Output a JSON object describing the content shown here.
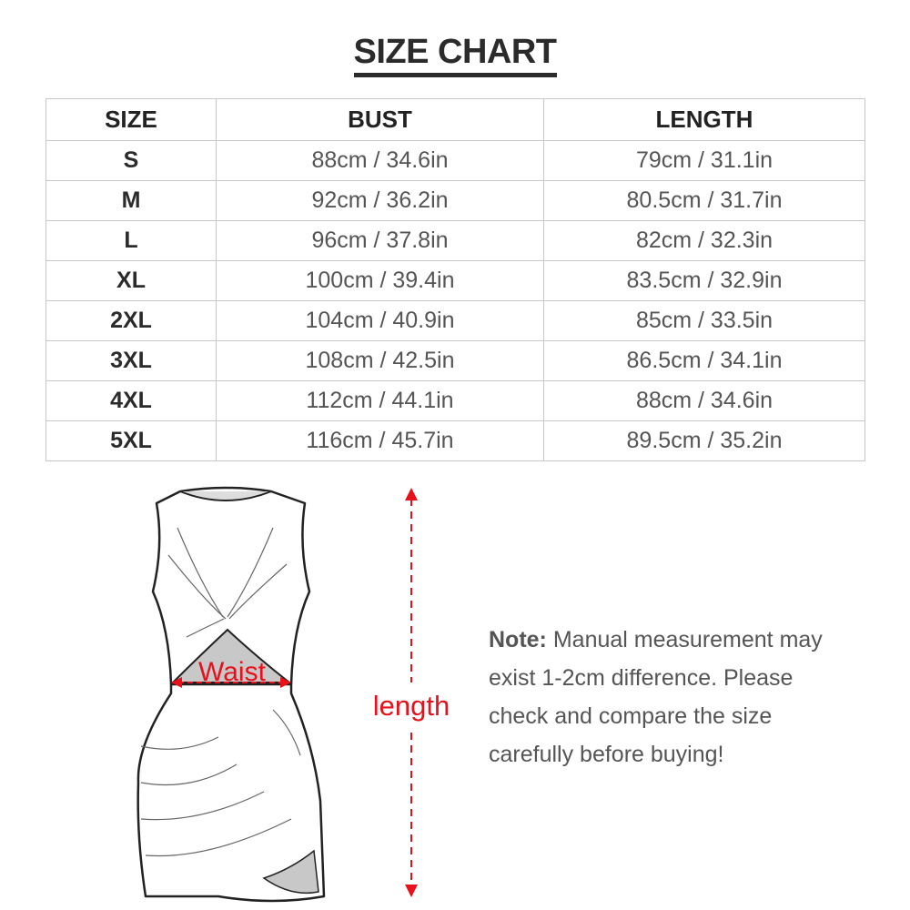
{
  "title": "SIZE CHART",
  "table": {
    "headers": [
      "SIZE",
      "BUST",
      "LENGTH"
    ],
    "rows": [
      [
        "S",
        "88cm / 34.6in",
        "79cm / 31.1in"
      ],
      [
        "M",
        "92cm / 36.2in",
        "80.5cm / 31.7in"
      ],
      [
        "L",
        "96cm / 37.8in",
        "82cm / 32.3in"
      ],
      [
        "XL",
        "100cm / 39.4in",
        "83.5cm / 32.9in"
      ],
      [
        "2XL",
        "104cm / 40.9in",
        "85cm / 33.5in"
      ],
      [
        "3XL",
        "108cm / 42.5in",
        "86.5cm / 34.1in"
      ],
      [
        "4XL",
        "112cm / 44.1in",
        "88cm / 34.6in"
      ],
      [
        "5XL",
        "116cm / 45.7in",
        "89.5cm / 35.2in"
      ]
    ]
  },
  "diagram": {
    "waist_label": "Waist",
    "length_label": "length",
    "accent_color": "#e8101a"
  },
  "note": {
    "label": "Note:",
    "lines": [
      "Manual measurement may",
      "exist 1-2cm difference. Please",
      "check and compare the size",
      "carefully before buying!"
    ]
  }
}
